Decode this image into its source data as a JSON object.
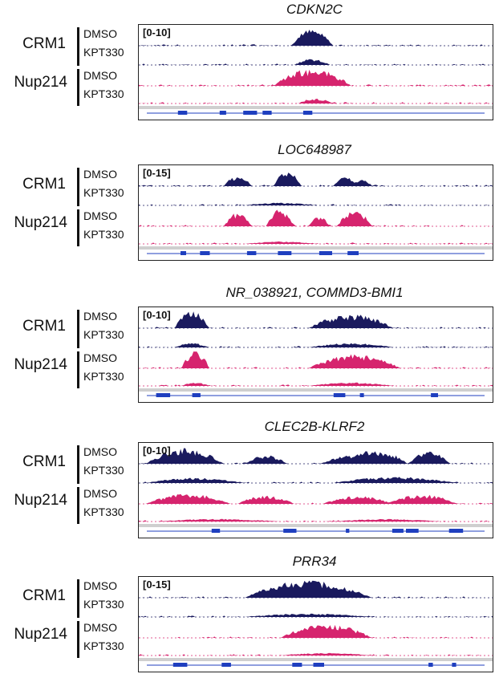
{
  "panels": [
    {
      "gene": "CDKN2C",
      "range": "[0-10]",
      "rows": {
        "crm1": "CRM1",
        "nup214": "Nup214"
      },
      "conditions": [
        "DMSO",
        "KPT330",
        "DMSO",
        "KPT330"
      ],
      "peaks": {
        "crm1_dmso": [
          [
            0.43,
            0.55,
            1.0
          ]
        ],
        "crm1_kpt": [
          [
            0.44,
            0.54,
            0.35
          ]
        ],
        "nup_dmso": [
          [
            0.38,
            0.6,
            1.0
          ]
        ],
        "nup_kpt": [
          [
            0.45,
            0.55,
            0.3
          ]
        ]
      }
    },
    {
      "gene": "LOC648987",
      "range": "[0-15]",
      "rows": {
        "crm1": "CRM1",
        "nup214": "Nup214"
      },
      "conditions": [
        "DMSO",
        "KPT330",
        "DMSO",
        "KPT330"
      ],
      "peaks": {
        "crm1_dmso": [
          [
            0.24,
            0.32,
            0.6
          ],
          [
            0.38,
            0.46,
            0.9
          ],
          [
            0.55,
            0.62,
            0.55
          ],
          [
            0.6,
            0.66,
            0.4
          ]
        ],
        "crm1_kpt": [
          [
            0.3,
            0.5,
            0.15
          ]
        ],
        "nup_dmso": [
          [
            0.24,
            0.32,
            0.8
          ],
          [
            0.36,
            0.44,
            1.0
          ],
          [
            0.48,
            0.54,
            0.6
          ],
          [
            0.56,
            0.66,
            0.9
          ],
          [
            0.6,
            0.66,
            0.4
          ]
        ],
        "nup_kpt": [
          [
            0.3,
            0.5,
            0.15
          ]
        ]
      }
    },
    {
      "gene": "NR_038921, COMMD3-BMI1",
      "range": "[0-10]",
      "rows": {
        "crm1": "CRM1",
        "nup214": "Nup214"
      },
      "conditions": [
        "DMSO",
        "KPT330",
        "DMSO",
        "KPT330"
      ],
      "peaks": {
        "crm1_dmso": [
          [
            0.1,
            0.2,
            1.0
          ],
          [
            0.48,
            0.72,
            0.8
          ]
        ],
        "crm1_kpt": [
          [
            0.1,
            0.2,
            0.25
          ],
          [
            0.48,
            0.72,
            0.25
          ]
        ],
        "nup_dmso": [
          [
            0.12,
            0.2,
            1.0
          ],
          [
            0.48,
            0.74,
            0.8
          ]
        ],
        "nup_kpt": [
          [
            0.12,
            0.2,
            0.2
          ],
          [
            0.48,
            0.72,
            0.2
          ]
        ]
      }
    },
    {
      "gene": "CLEC2B-KLRF2",
      "range": "[0-10]",
      "rows": {
        "crm1": "CRM1",
        "nup214": "Nup214"
      },
      "conditions": [
        "DMSO",
        "KPT330",
        "DMSO",
        "KPT330"
      ],
      "peaks": {
        "crm1_dmso": [
          [
            0.02,
            0.24,
            0.9
          ],
          [
            0.3,
            0.42,
            0.5
          ],
          [
            0.52,
            0.66,
            0.5
          ],
          [
            0.58,
            0.76,
            0.8
          ],
          [
            0.76,
            0.88,
            0.7
          ]
        ],
        "crm1_kpt": [
          [
            0.02,
            0.3,
            0.3
          ],
          [
            0.55,
            0.9,
            0.35
          ]
        ],
        "nup_dmso": [
          [
            0.02,
            0.26,
            0.6
          ],
          [
            0.28,
            0.44,
            0.5
          ],
          [
            0.52,
            0.72,
            0.45
          ],
          [
            0.7,
            0.9,
            0.55
          ]
        ],
        "nup_kpt": [
          [
            0.05,
            0.4,
            0.15
          ],
          [
            0.55,
            0.85,
            0.15
          ]
        ]
      }
    },
    {
      "gene": "PRR34",
      "range": "[0-15]",
      "rows": {
        "crm1": "CRM1",
        "nup214": "Nup214"
      },
      "conditions": [
        "DMSO",
        "KPT330",
        "DMSO",
        "KPT330"
      ],
      "peaks": {
        "crm1_dmso": [
          [
            0.3,
            0.66,
            1.0
          ]
        ],
        "crm1_kpt": [
          [
            0.3,
            0.66,
            0.2
          ]
        ],
        "nup_dmso": [
          [
            0.4,
            0.66,
            0.8
          ]
        ],
        "nup_kpt": [
          [
            0.4,
            0.66,
            0.15
          ]
        ]
      }
    }
  ],
  "colors": {
    "crm1": "#1a1a5e",
    "nup214": "#d6246e",
    "gene": "#1f3fbf"
  }
}
